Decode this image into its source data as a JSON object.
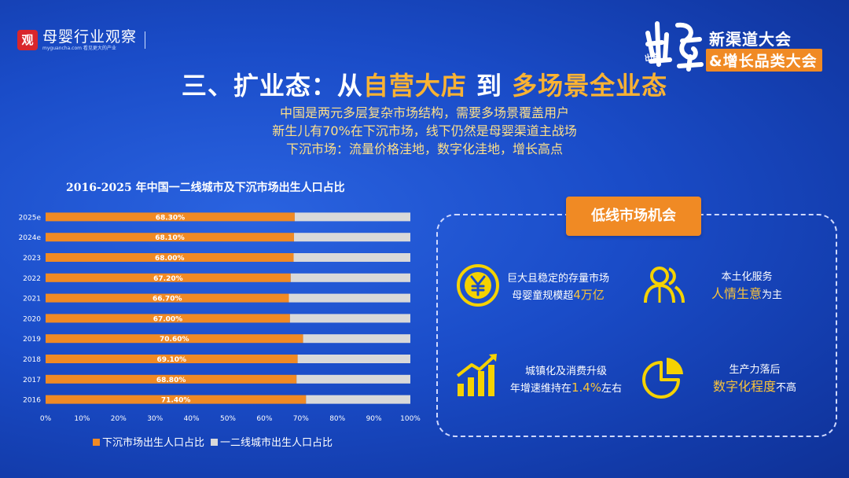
{
  "logo": {
    "seal_char": "观",
    "brand": "母婴行业观察",
    "tagline": "myguancha.com 看见更大的产业"
  },
  "conference": {
    "script_text": "出路",
    "line1": "新渠道大会",
    "line2": "&增长品类大会"
  },
  "title": {
    "prefix": "三、扩业态：从",
    "accent1": "自营大店",
    "middle": " 到 ",
    "accent2": "多场景全业态"
  },
  "subtitle_lines": [
    "中国是两元多层复杂市场结构，需要多场景覆盖用户",
    "新生儿有70%在下沉市场，线下仍然是母婴渠道主战场",
    "下沉市场：流量价格洼地，数字化洼地，增长高点"
  ],
  "chart_data": {
    "type": "bar",
    "orientation": "horizontal",
    "stacked": true,
    "title": "2016-2025 年中国一二线城市及下沉市场出生人口占比",
    "categories": [
      "2025e",
      "2024e",
      "2023",
      "2022",
      "2021",
      "2020",
      "2019",
      "2018",
      "2017",
      "2016"
    ],
    "series": [
      {
        "name": "下沉市场出生人口占比",
        "color": "#f08a24",
        "values": [
          68.3,
          68.1,
          68.0,
          67.2,
          66.7,
          67.0,
          70.6,
          69.1,
          68.8,
          71.4
        ],
        "labels": [
          "68.30%",
          "68.10%",
          "68.00%",
          "67.20%",
          "66.70%",
          "67.00%",
          "70.60%",
          "69.10%",
          "68.80%",
          "71.40%"
        ]
      },
      {
        "name": "一二线城市出生人口占比",
        "color": "#d9d9d9",
        "values": [
          31.7,
          31.9,
          32.0,
          32.8,
          33.3,
          33.0,
          29.4,
          30.9,
          31.2,
          28.6
        ]
      }
    ],
    "xlim": [
      0,
      100
    ],
    "xticks": [
      "0%",
      "10%",
      "20%",
      "30%",
      "40%",
      "50%",
      "60%",
      "70%",
      "80%",
      "90%",
      "100%"
    ],
    "legend_position": "bottom",
    "grid": false
  },
  "panel": {
    "title": "低线市场机会",
    "items": [
      {
        "icon": "yuan-coin-icon",
        "line1": "巨大且稳定的存量市场",
        "line2_pre": "母婴童规模超",
        "line2_hl": "4万亿",
        "line2_post": ""
      },
      {
        "icon": "people-icon",
        "line1": "本土化服务",
        "line2_pre": "",
        "line2_hl": "人情生意",
        "line2_post": "为主"
      },
      {
        "icon": "growth-chart-icon",
        "line1": "城镇化及消费升级",
        "line2_pre": "年增速维持在",
        "line2_hl": "1.4%",
        "line2_post": "左右"
      },
      {
        "icon": "pie-chart-icon",
        "line1": "生产力落后",
        "line2_pre": "",
        "line2_hl": "数字化程度",
        "line2_post": "不高"
      }
    ]
  },
  "colors": {
    "accent_orange": "#f08a24",
    "accent_yellow": "#f9c33a",
    "icon_yellow": "#f5d200",
    "bar_gray": "#d9d9d9"
  }
}
